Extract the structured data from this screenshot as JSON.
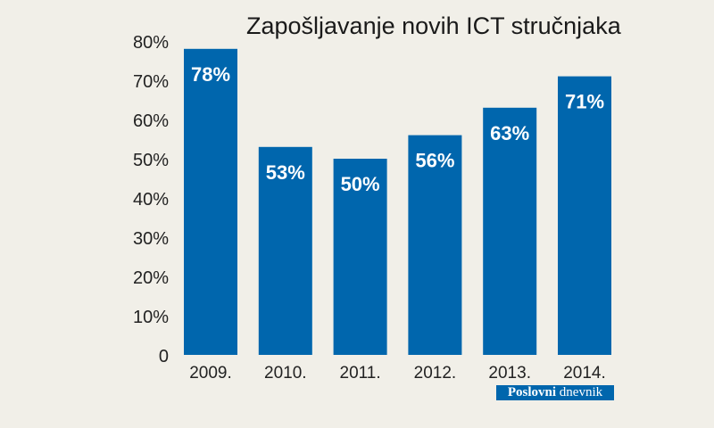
{
  "chart_data": {
    "type": "bar",
    "title": "Zapošljavanje novih ICT stručnjaka",
    "categories": [
      "2009.",
      "2010.",
      "2011.",
      "2012.",
      "2013.",
      "2014."
    ],
    "values": [
      78,
      53,
      50,
      56,
      63,
      71
    ],
    "data_labels": [
      "78%",
      "53%",
      "50%",
      "56%",
      "63%",
      "71%"
    ],
    "ylim": [
      0,
      80
    ],
    "y_ticks": [
      "0",
      "10%",
      "20%",
      "30%",
      "40%",
      "50%",
      "60%",
      "70%",
      "80%"
    ],
    "grid": false,
    "bar_color": "#0066ad",
    "background": "#f1efe8"
  },
  "source_logo": {
    "part1": "Poslovni",
    "part2": "dnevnik"
  }
}
